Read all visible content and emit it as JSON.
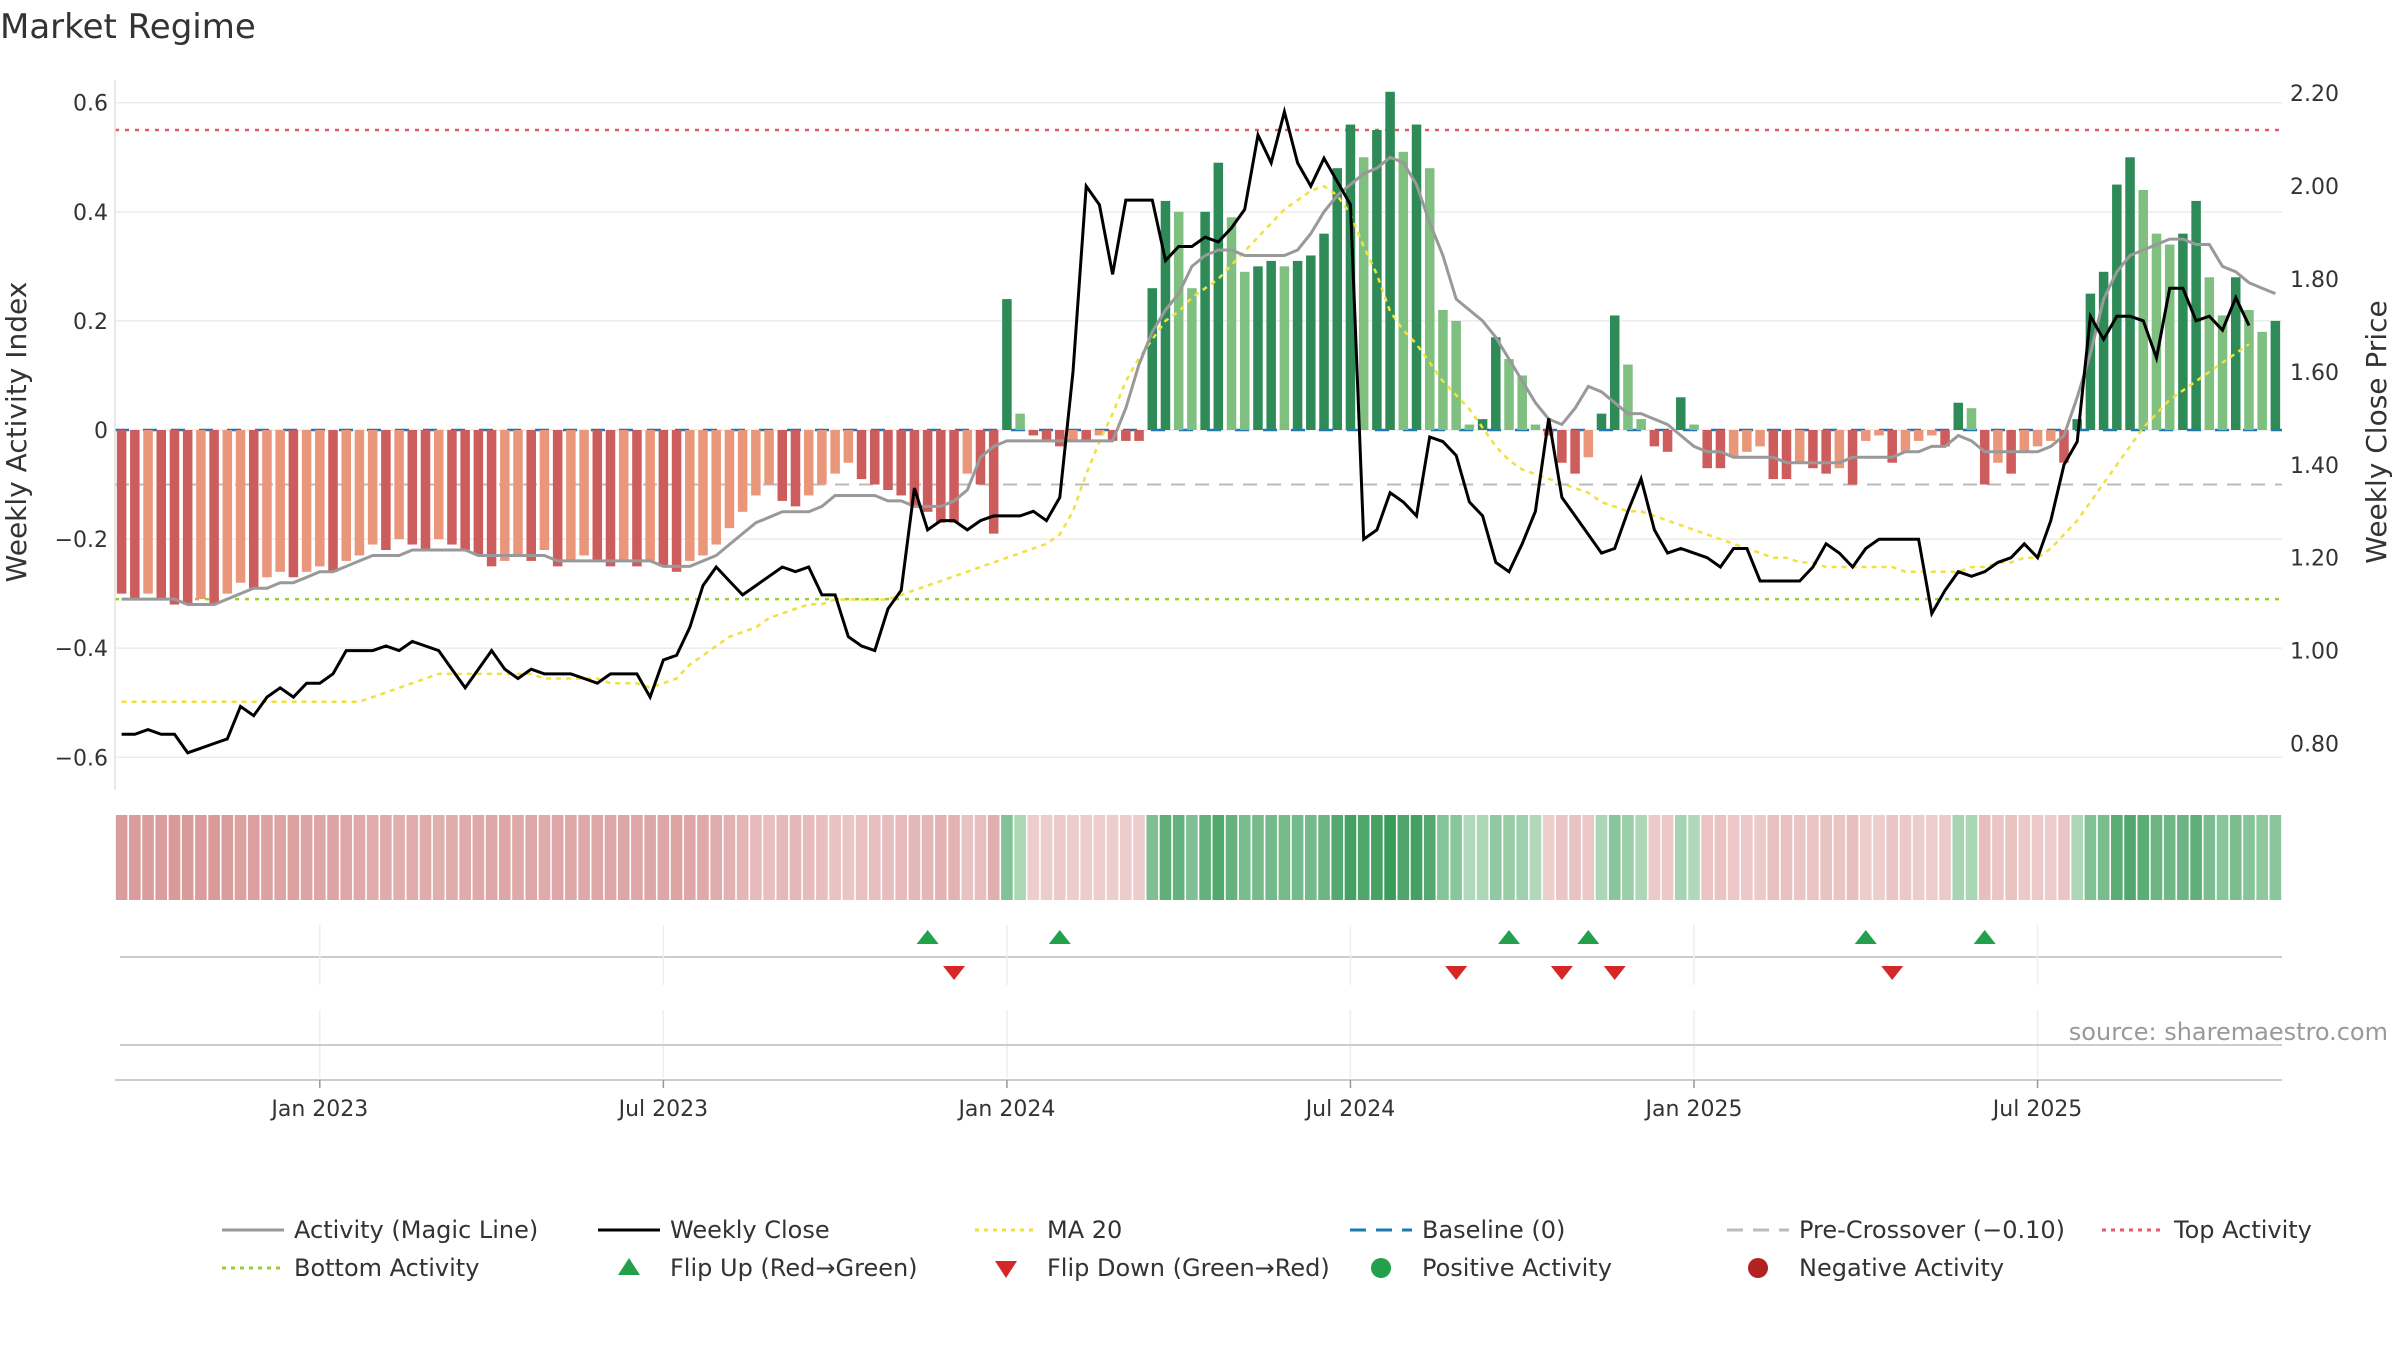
{
  "chart_data": {
    "type": "bar",
    "title": "Market Regime",
    "source_text": "source: sharemaestro.com",
    "ylabel_left": "Weekly Activity Index",
    "ylabel_right": "Weekly Close Price",
    "ylim_left": [
      -0.66,
      0.66
    ],
    "ylim_right": [
      0.7,
      2.25
    ],
    "yticks_left": [
      "0.6",
      "0.4",
      "0.2",
      "0",
      "−0.2",
      "−0.4",
      "−0.6"
    ],
    "yticks_left_values": [
      0.6,
      0.4,
      0.2,
      0,
      -0.2,
      -0.4,
      -0.6
    ],
    "yticks_right": [
      "2.20",
      "2.00",
      "1.80",
      "1.60",
      "1.40",
      "1.20",
      "1.00",
      "0.80"
    ],
    "yticks_right_values": [
      2.2,
      2.0,
      1.8,
      1.6,
      1.4,
      1.2,
      1.0,
      0.8
    ],
    "xticks": [
      {
        "label": "Jan 2023",
        "week": 15
      },
      {
        "label": "Jul 2023",
        "week": 41
      },
      {
        "label": "Jan 2024",
        "week": 67
      },
      {
        "label": "Jul 2024",
        "week": 93
      },
      {
        "label": "Jan 2025",
        "week": 119
      },
      {
        "label": "Jul 2025",
        "week": 145
      }
    ],
    "reference_lines": {
      "top_activity": 0.55,
      "bottom_activity": -0.31,
      "pre_crossover": -0.1,
      "baseline": 0
    },
    "activity": [
      -0.3,
      -0.31,
      -0.3,
      -0.31,
      -0.32,
      -0.32,
      -0.31,
      -0.32,
      -0.3,
      -0.28,
      -0.29,
      -0.27,
      -0.26,
      -0.27,
      -0.26,
      -0.25,
      -0.26,
      -0.24,
      -0.23,
      -0.21,
      -0.22,
      -0.2,
      -0.21,
      -0.22,
      -0.2,
      -0.21,
      -0.22,
      -0.23,
      -0.25,
      -0.24,
      -0.23,
      -0.24,
      -0.22,
      -0.25,
      -0.24,
      -0.23,
      -0.24,
      -0.25,
      -0.24,
      -0.25,
      -0.24,
      -0.25,
      -0.26,
      -0.24,
      -0.23,
      -0.21,
      -0.18,
      -0.15,
      -0.12,
      -0.1,
      -0.13,
      -0.14,
      -0.12,
      -0.1,
      -0.08,
      -0.06,
      -0.09,
      -0.1,
      -0.11,
      -0.12,
      -0.14,
      -0.15,
      -0.17,
      -0.17,
      -0.08,
      -0.1,
      -0.19,
      0.24,
      0.03,
      -0.01,
      -0.02,
      -0.03,
      -0.02,
      -0.02,
      -0.01,
      -0.02,
      -0.02,
      -0.02,
      0.26,
      0.42,
      0.4,
      0.26,
      0.4,
      0.49,
      0.39,
      0.29,
      0.3,
      0.31,
      0.3,
      0.31,
      0.32,
      0.36,
      0.48,
      0.56,
      0.5,
      0.55,
      0.62,
      0.51,
      0.56,
      0.48,
      0.22,
      0.2,
      0.01,
      0.02,
      0.17,
      0.13,
      0.1,
      0.01,
      -0.01,
      -0.06,
      -0.08,
      -0.05,
      0.03,
      0.21,
      0.12,
      0.02,
      -0.03,
      -0.04,
      0.06,
      0.01,
      -0.07,
      -0.07,
      -0.05,
      -0.04,
      -0.03,
      -0.09,
      -0.09,
      -0.06,
      -0.07,
      -0.08,
      -0.07,
      -0.1,
      -0.02,
      -0.01,
      -0.06,
      -0.04,
      -0.02,
      -0.01,
      -0.03,
      0.05,
      0.04,
      -0.1,
      -0.06,
      -0.08,
      -0.04,
      -0.03,
      -0.02,
      -0.06,
      0.02,
      0.25,
      0.29,
      0.45,
      0.5,
      0.44,
      0.36,
      0.34,
      0.36,
      0.42,
      0.28,
      0.21,
      0.28,
      0.22,
      0.18,
      0.2
    ],
    "magic_line": [
      -0.31,
      -0.31,
      -0.31,
      -0.31,
      -0.31,
      -0.32,
      -0.32,
      -0.32,
      -0.31,
      -0.3,
      -0.29,
      -0.29,
      -0.28,
      -0.28,
      -0.27,
      -0.26,
      -0.26,
      -0.25,
      -0.24,
      -0.23,
      -0.23,
      -0.23,
      -0.22,
      -0.22,
      -0.22,
      -0.22,
      -0.22,
      -0.23,
      -0.23,
      -0.23,
      -0.23,
      -0.23,
      -0.23,
      -0.24,
      -0.24,
      -0.24,
      -0.24,
      -0.24,
      -0.24,
      -0.24,
      -0.24,
      -0.25,
      -0.25,
      -0.25,
      -0.24,
      -0.23,
      -0.21,
      -0.19,
      -0.17,
      -0.16,
      -0.15,
      -0.15,
      -0.15,
      -0.14,
      -0.12,
      -0.12,
      -0.12,
      -0.12,
      -0.13,
      -0.13,
      -0.14,
      -0.14,
      -0.14,
      -0.13,
      -0.11,
      -0.05,
      -0.03,
      -0.02,
      -0.02,
      -0.02,
      -0.02,
      -0.02,
      -0.02,
      -0.02,
      -0.02,
      -0.02,
      0.04,
      0.12,
      0.18,
      0.22,
      0.25,
      0.3,
      0.32,
      0.33,
      0.33,
      0.32,
      0.32,
      0.32,
      0.32,
      0.33,
      0.36,
      0.4,
      0.43,
      0.45,
      0.47,
      0.48,
      0.5,
      0.49,
      0.45,
      0.38,
      0.32,
      0.24,
      0.22,
      0.2,
      0.17,
      0.13,
      0.09,
      0.05,
      0.02,
      0.01,
      0.04,
      0.08,
      0.07,
      0.05,
      0.03,
      0.03,
      0.02,
      0.01,
      -0.01,
      -0.03,
      -0.04,
      -0.04,
      -0.05,
      -0.05,
      -0.05,
      -0.05,
      -0.06,
      -0.06,
      -0.06,
      -0.06,
      -0.06,
      -0.05,
      -0.05,
      -0.05,
      -0.05,
      -0.04,
      -0.04,
      -0.03,
      -0.03,
      -0.01,
      -0.02,
      -0.04,
      -0.04,
      -0.04,
      -0.04,
      -0.04,
      -0.03,
      -0.01,
      0.06,
      0.14,
      0.24,
      0.29,
      0.32,
      0.33,
      0.34,
      0.35,
      0.35,
      0.34,
      0.34,
      0.3,
      0.29,
      0.27,
      0.26,
      0.25
    ],
    "weekly_close": [
      0.82,
      0.82,
      0.83,
      0.82,
      0.82,
      0.78,
      0.79,
      0.8,
      0.81,
      0.88,
      0.86,
      0.9,
      0.92,
      0.9,
      0.93,
      0.93,
      0.95,
      1.0,
      1.0,
      1.0,
      1.01,
      1.0,
      1.02,
      1.01,
      1.0,
      0.96,
      0.92,
      0.96,
      1.0,
      0.96,
      0.94,
      0.96,
      0.95,
      0.95,
      0.95,
      0.94,
      0.93,
      0.95,
      0.95,
      0.95,
      0.9,
      0.98,
      0.99,
      1.05,
      1.14,
      1.18,
      1.15,
      1.12,
      1.14,
      1.16,
      1.18,
      1.17,
      1.18,
      1.12,
      1.12,
      1.03,
      1.01,
      1.0,
      1.09,
      1.13,
      1.35,
      1.26,
      1.28,
      1.28,
      1.26,
      1.28,
      1.29,
      1.29,
      1.29,
      1.3,
      1.28,
      1.33,
      1.6,
      2.0,
      1.96,
      1.81,
      1.97,
      1.97,
      1.97,
      1.84,
      1.87,
      1.87,
      1.89,
      1.88,
      1.91,
      1.95,
      2.11,
      2.05,
      2.16,
      2.05,
      2.0,
      2.06,
      2.01,
      1.96,
      1.24,
      1.26,
      1.34,
      1.32,
      1.29,
      1.46,
      1.45,
      1.42,
      1.32,
      1.29,
      1.19,
      1.17,
      1.23,
      1.3,
      1.5,
      1.33,
      1.29,
      1.25,
      1.21,
      1.22,
      1.3,
      1.37,
      1.26,
      1.21,
      1.22,
      1.21,
      1.2,
      1.18,
      1.22,
      1.22,
      1.15,
      1.15,
      1.15,
      1.15,
      1.18,
      1.23,
      1.21,
      1.18,
      1.22,
      1.24,
      1.24,
      1.24,
      1.24,
      1.08,
      1.13,
      1.17,
      1.16,
      1.17,
      1.19,
      1.2,
      1.23,
      1.2,
      1.28,
      1.4,
      1.45,
      1.72,
      1.67,
      1.72,
      1.72,
      1.71,
      1.63,
      1.78,
      1.78,
      1.71,
      1.72,
      1.69,
      1.76,
      1.7
    ],
    "ma20": [
      0.89,
      0.89,
      0.89,
      0.89,
      0.89,
      0.89,
      0.89,
      0.89,
      0.89,
      0.89,
      0.89,
      0.89,
      0.89,
      0.89,
      0.89,
      0.89,
      0.89,
      0.89,
      0.89,
      0.9,
      0.91,
      0.92,
      0.93,
      0.94,
      0.95,
      0.95,
      0.95,
      0.95,
      0.95,
      0.95,
      0.95,
      0.95,
      0.94,
      0.94,
      0.94,
      0.94,
      0.94,
      0.93,
      0.93,
      0.93,
      0.92,
      0.93,
      0.94,
      0.97,
      0.99,
      1.01,
      1.03,
      1.04,
      1.05,
      1.07,
      1.08,
      1.09,
      1.1,
      1.1,
      1.11,
      1.11,
      1.11,
      1.11,
      1.11,
      1.12,
      1.13,
      1.14,
      1.15,
      1.16,
      1.17,
      1.18,
      1.19,
      1.2,
      1.21,
      1.22,
      1.23,
      1.25,
      1.3,
      1.38,
      1.45,
      1.51,
      1.58,
      1.63,
      1.67,
      1.71,
      1.73,
      1.76,
      1.78,
      1.8,
      1.83,
      1.86,
      1.89,
      1.92,
      1.95,
      1.97,
      1.99,
      2.0,
      1.98,
      1.94,
      1.87,
      1.81,
      1.73,
      1.69,
      1.66,
      1.62,
      1.58,
      1.55,
      1.52,
      1.48,
      1.44,
      1.41,
      1.39,
      1.38,
      1.37,
      1.36,
      1.35,
      1.34,
      1.32,
      1.31,
      1.3,
      1.3,
      1.29,
      1.28,
      1.27,
      1.26,
      1.25,
      1.24,
      1.23,
      1.22,
      1.21,
      1.2,
      1.2,
      1.19,
      1.19,
      1.18,
      1.18,
      1.18,
      1.18,
      1.18,
      1.18,
      1.17,
      1.17,
      1.17,
      1.17,
      1.17,
      1.18,
      1.18,
      1.19,
      1.19,
      1.2,
      1.2,
      1.22,
      1.25,
      1.28,
      1.32,
      1.36,
      1.4,
      1.44,
      1.48,
      1.51,
      1.54,
      1.56,
      1.58,
      1.6,
      1.62,
      1.64,
      1.66
    ],
    "regime_strip": [
      -0.3,
      -0.31,
      -0.3,
      -0.31,
      -0.32,
      -0.32,
      -0.31,
      -0.32,
      -0.3,
      -0.28,
      -0.29,
      -0.27,
      -0.26,
      -0.27,
      -0.26,
      -0.25,
      -0.26,
      -0.24,
      -0.23,
      -0.21,
      -0.22,
      -0.2,
      -0.21,
      -0.22,
      -0.2,
      -0.21,
      -0.22,
      -0.23,
      -0.25,
      -0.24,
      -0.23,
      -0.24,
      -0.22,
      -0.25,
      -0.24,
      -0.23,
      -0.24,
      -0.25,
      -0.24,
      -0.25,
      -0.24,
      -0.25,
      -0.26,
      -0.24,
      -0.23,
      -0.21,
      -0.18,
      -0.15,
      -0.12,
      -0.1,
      -0.13,
      -0.14,
      -0.12,
      -0.1,
      -0.08,
      -0.06,
      -0.09,
      -0.1,
      -0.11,
      -0.12,
      -0.14,
      -0.15,
      -0.17,
      -0.17,
      -0.08,
      -0.1,
      -0.19,
      0.24,
      0.03,
      -0.01,
      -0.02,
      -0.03,
      -0.02,
      -0.02,
      -0.01,
      -0.02,
      -0.02,
      -0.02,
      0.26,
      0.42,
      0.4,
      0.26,
      0.4,
      0.49,
      0.39,
      0.29,
      0.3,
      0.31,
      0.3,
      0.31,
      0.32,
      0.36,
      0.48,
      0.56,
      0.5,
      0.55,
      0.62,
      0.51,
      0.56,
      0.48,
      0.22,
      0.2,
      0.01,
      0.02,
      0.17,
      0.13,
      0.1,
      0.01,
      -0.01,
      -0.06,
      -0.08,
      -0.05,
      0.03,
      0.21,
      0.12,
      0.02,
      -0.03,
      -0.04,
      0.06,
      0.01,
      -0.07,
      -0.07,
      -0.05,
      -0.04,
      -0.03,
      -0.09,
      -0.09,
      -0.06,
      -0.07,
      -0.08,
      -0.07,
      -0.1,
      -0.02,
      -0.01,
      -0.06,
      -0.04,
      -0.02,
      -0.01,
      -0.03,
      0.05,
      0.04,
      -0.1,
      -0.06,
      -0.08,
      -0.04,
      -0.03,
      -0.02,
      -0.06,
      0.02,
      0.25,
      0.29,
      0.45,
      0.5,
      0.44,
      0.36,
      0.34,
      0.36,
      0.42,
      0.28,
      0.21,
      0.28,
      0.22,
      0.18,
      0.2
    ],
    "flip_up_weeks": [
      61,
      71,
      105,
      111,
      132,
      141
    ],
    "flip_down_weeks": [
      63,
      101,
      109,
      113,
      134
    ],
    "colors": {
      "pos_dark": "#2e8b57",
      "pos_light": "#7fbf7f",
      "neg_dark": "#cd5c5c",
      "neg_light": "#e9967a",
      "magic_line": "#999999",
      "weekly_close": "#000000",
      "ma20": "#f0e040",
      "baseline": "#1f77b4",
      "pre_crossover": "#bbbbbb",
      "top_activity": "#e05a6a",
      "bottom_activity": "#9acd32",
      "flip_up": "#22a04b",
      "flip_down": "#d62728",
      "positive_activity": "#22a04b",
      "negative_activity": "#b22222"
    },
    "legend": [
      {
        "label": "Activity (Magic Line)",
        "kind": "line",
        "color": "#999999"
      },
      {
        "label": "Weekly Close",
        "kind": "line",
        "color": "#000000"
      },
      {
        "label": "MA 20",
        "kind": "dotted",
        "color": "#f0e040"
      },
      {
        "label": "Baseline (0)",
        "kind": "dashed",
        "color": "#1f77b4"
      },
      {
        "label": "Pre-Crossover (−0.10)",
        "kind": "dashed",
        "color": "#bbbbbb"
      },
      {
        "label": "Top Activity",
        "kind": "dotted",
        "color": "#e05a6a"
      },
      {
        "label": "Bottom Activity",
        "kind": "dotted",
        "color": "#9acd32"
      },
      {
        "label": "Flip Up (Red→Green)",
        "kind": "triangle-up",
        "color": "#22a04b"
      },
      {
        "label": "Flip Down (Green→Red)",
        "kind": "triangle-down",
        "color": "#d62728"
      },
      {
        "label": "Positive Activity",
        "kind": "dot",
        "color": "#22a04b"
      },
      {
        "label": "Negative Activity",
        "kind": "dot",
        "color": "#b22222"
      }
    ]
  }
}
